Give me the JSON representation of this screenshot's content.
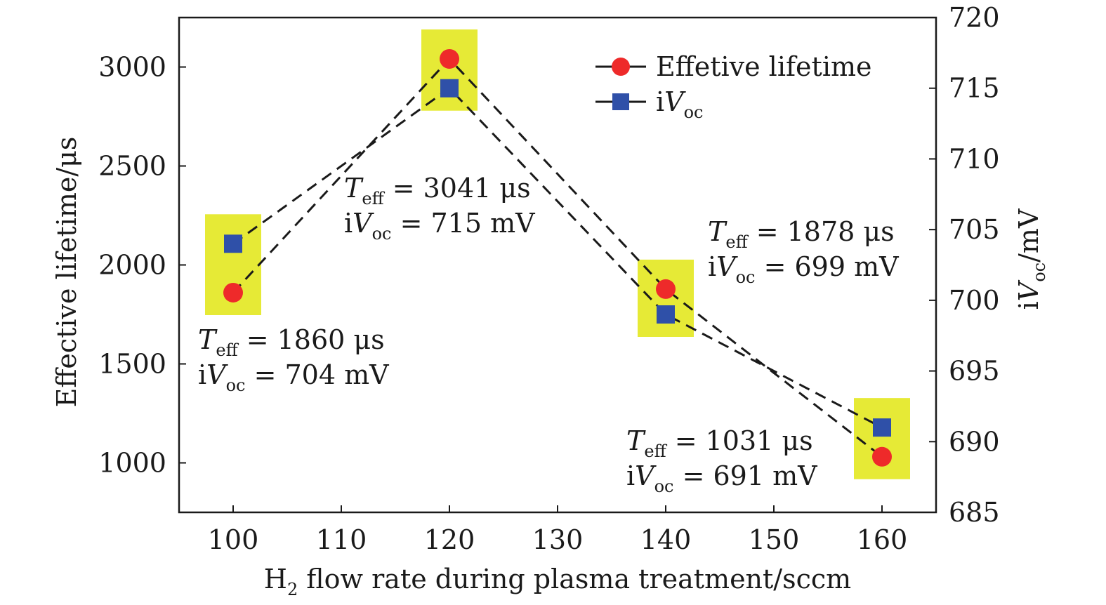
{
  "chart_data": {
    "type": "line",
    "x": [
      100,
      120,
      140,
      160
    ],
    "xlabel": {
      "main": "H",
      "sub": "2",
      "rest": " flow rate during plasma treatment/sccm"
    },
    "ylabel_left": "Effective lifetime/μs",
    "ylabel_right": {
      "prefix": "i",
      "var": "V",
      "sub": "oc",
      "suffix": "/mV"
    },
    "xlim": [
      95,
      165
    ],
    "ylim_left": [
      750,
      3250
    ],
    "ylim_right": [
      685,
      720
    ],
    "x_ticks": [
      100,
      110,
      120,
      130,
      140,
      150,
      160
    ],
    "y_ticks_left": [
      1000,
      1500,
      2000,
      2500,
      3000
    ],
    "y_ticks_right": [
      685,
      690,
      695,
      700,
      705,
      710,
      715,
      720
    ],
    "grid": false,
    "legend_position": "top-right",
    "series": [
      {
        "name": "Effetive lifetime",
        "axis": "left",
        "marker": "circle",
        "color": "#ee2a2a",
        "values": [
          1860,
          3041,
          1878,
          1031
        ]
      },
      {
        "name": "iVoc",
        "legend_label": {
          "prefix": "i",
          "var": "V",
          "sub": "oc"
        },
        "axis": "right",
        "marker": "square",
        "color": "#2f50a8",
        "values": [
          704,
          715,
          699,
          691
        ]
      }
    ],
    "highlight_color": "#e6ea36",
    "line_style": "dashed",
    "annotations": [
      {
        "teff_var": "T",
        "teff_sub": "eff",
        "teff_val": " = 1860 μs",
        "ivoc_prefix": "i",
        "ivoc_var": "V",
        "ivoc_sub": "oc",
        "ivoc_val": " = 704 mV"
      },
      {
        "teff_var": "T",
        "teff_sub": "eff",
        "teff_val": " = 3041 μs",
        "ivoc_prefix": "i",
        "ivoc_var": "V",
        "ivoc_sub": "oc",
        "ivoc_val": " = 715 mV"
      },
      {
        "teff_var": "T",
        "teff_sub": "eff",
        "teff_val": " = 1878 μs",
        "ivoc_prefix": "i",
        "ivoc_var": "V",
        "ivoc_sub": "oc",
        "ivoc_val": " = 699 mV"
      },
      {
        "teff_var": "T",
        "teff_sub": "eff",
        "teff_val": " = 1031 μs",
        "ivoc_prefix": "i",
        "ivoc_var": "V",
        "ivoc_sub": "oc",
        "ivoc_val": " = 691 mV"
      }
    ]
  }
}
